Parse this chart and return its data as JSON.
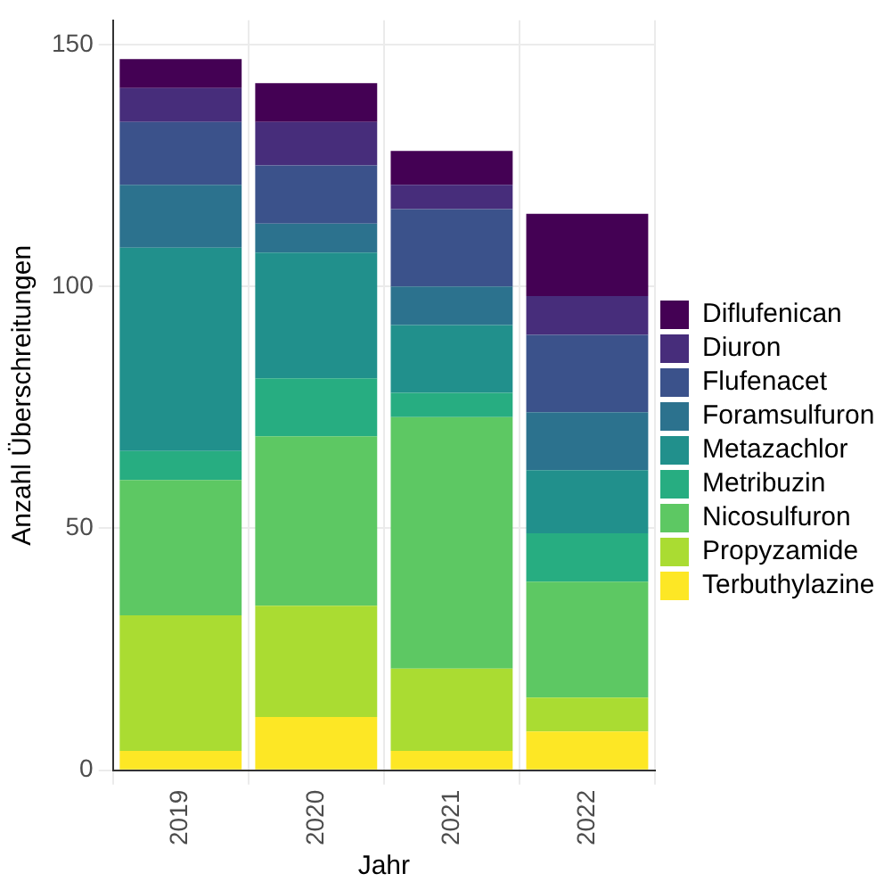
{
  "chart_data": {
    "type": "bar",
    "stacked": true,
    "xlabel": "Jahr",
    "ylabel": "Anzahl Überschreitungen",
    "categories": [
      "2019",
      "2020",
      "2021",
      "2022"
    ],
    "ylim": [
      0,
      155
    ],
    "yticks": [
      0,
      50,
      100,
      150
    ],
    "grid": true,
    "legend": "right",
    "series": [
      {
        "name": "Terbuthylazine",
        "color": "#fde725",
        "values": [
          4,
          11,
          4,
          8
        ]
      },
      {
        "name": "Propyzamide",
        "color": "#aadc32",
        "values": [
          28,
          23,
          17,
          7
        ]
      },
      {
        "name": "Nicosulfuron",
        "color": "#5dc863",
        "values": [
          28,
          35,
          52,
          24
        ]
      },
      {
        "name": "Metribuzin",
        "color": "#27ad81",
        "values": [
          6,
          12,
          5,
          10
        ]
      },
      {
        "name": "Metazachlor",
        "color": "#21908c",
        "values": [
          42,
          26,
          14,
          13
        ]
      },
      {
        "name": "Foramsulfuron",
        "color": "#2c728e",
        "values": [
          13,
          6,
          8,
          12
        ]
      },
      {
        "name": "Flufenacet",
        "color": "#3b528b",
        "values": [
          13,
          12,
          16,
          16
        ]
      },
      {
        "name": "Diuron",
        "color": "#472d7b",
        "values": [
          7,
          9,
          5,
          8
        ]
      },
      {
        "name": "Diflufenican",
        "color": "#440154",
        "values": [
          6,
          8,
          7,
          17
        ]
      }
    ]
  }
}
